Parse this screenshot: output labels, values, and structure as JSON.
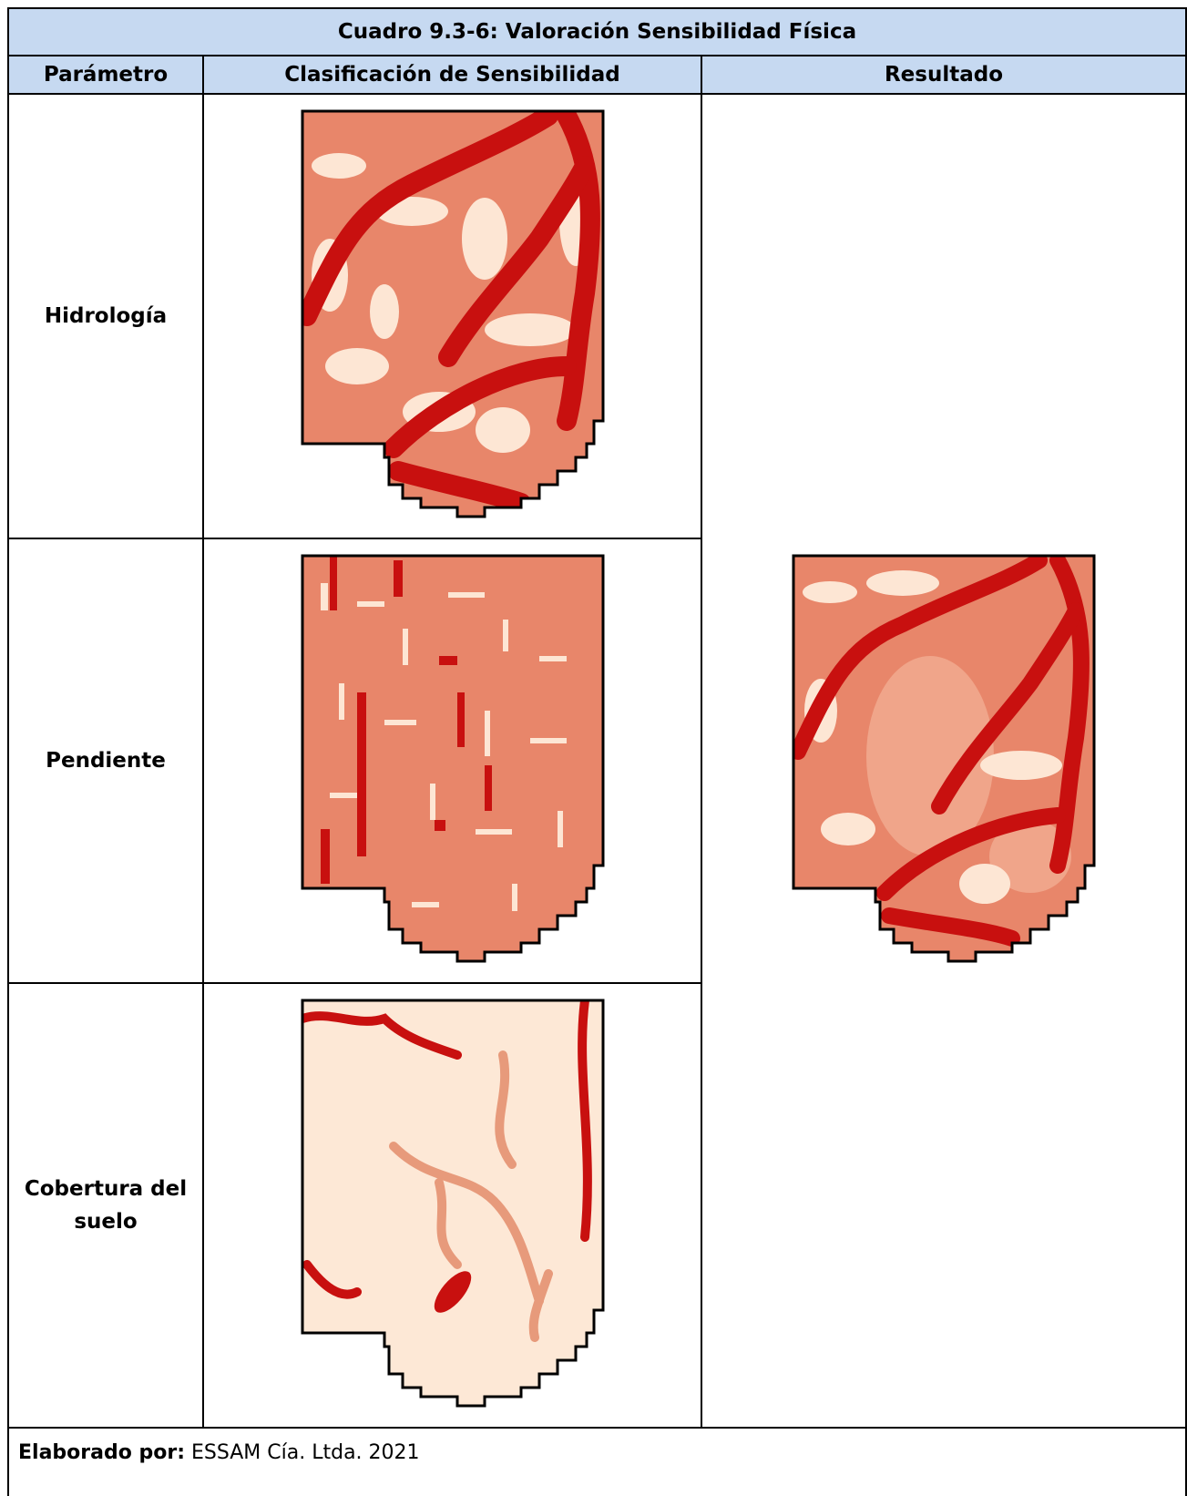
{
  "table": {
    "title": "Cuadro 9.3-6: Valoración Sensibilidad Física",
    "headers": [
      "Parámetro",
      "Clasificación de Sensibilidad",
      "Resultado"
    ],
    "rows": [
      "Hidrología",
      "Pendiente",
      "Cobertura del suelo"
    ]
  },
  "footer": {
    "label": "Elaborado por:",
    "text": "ESSAM Cía. Ltda. 2021"
  }
}
